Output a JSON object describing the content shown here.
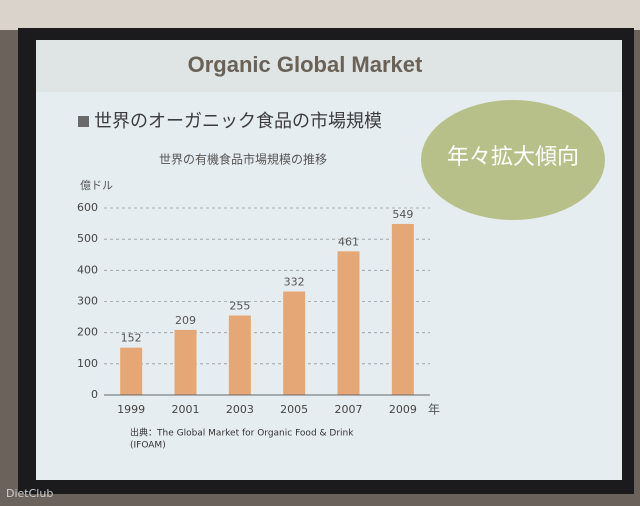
{
  "slide": {
    "title": "Organic Global Market",
    "heading": "世界のオーガニック食品の市場規模",
    "callout": "年々拡大傾向",
    "source": [
      "出典：The Global Market for Organic Food & Drink",
      "(IFOAM)"
    ],
    "watermark": "DietClub"
  },
  "chart_data": {
    "type": "bar",
    "title": "世界の有機食品市場規模の推移",
    "y_label": "億ドル",
    "x_label": "年",
    "categories": [
      "1999",
      "2001",
      "2003",
      "2005",
      "2007",
      "2009"
    ],
    "values": [
      152,
      209,
      255,
      332,
      461,
      549
    ],
    "color": "#e5a775",
    "ylim": [
      0,
      600
    ],
    "yticks": [
      0,
      100,
      200,
      300,
      400,
      500,
      600
    ],
    "grid": true
  }
}
